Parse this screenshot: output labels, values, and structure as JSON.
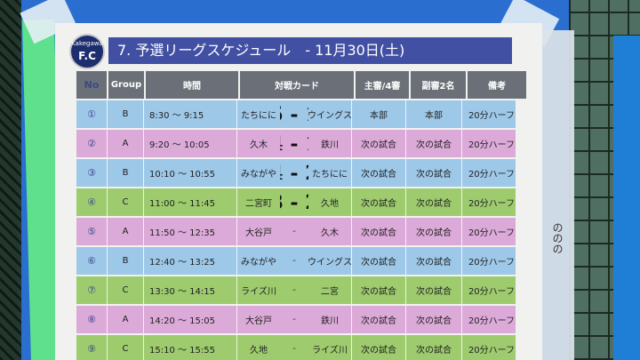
{
  "title": "7. 予選リーグスケジュール　- 11月30日(土)",
  "logo": {
    "top_text": "Kakegawa",
    "mark": "F.C"
  },
  "side_note": "ののの",
  "headers": {
    "no": "No",
    "group": "Group",
    "time": "時間",
    "match": "対戦カード",
    "referee": "主審/4審",
    "assistants": "副審2名",
    "notes": "備考"
  },
  "rows": [
    {
      "no": "①",
      "group": "B",
      "time": "8:30 〜 9:15",
      "home": "たちにに",
      "score": "5 - 1",
      "away": "ウイングス",
      "referee": "本部",
      "assistants": "本部",
      "notes": "20分ハーフ",
      "color": "blue"
    },
    {
      "no": "②",
      "group": "A",
      "time": "9:20 〜 10:05",
      "home": "久木",
      "score": "4 - 1",
      "away": "鉄川",
      "referee": "次の試合",
      "assistants": "次の試合",
      "notes": "20分ハーフ",
      "color": "pink"
    },
    {
      "no": "③",
      "group": "B",
      "time": "10:10 〜 10:55",
      "home": "みながや",
      "score": "4 - 2",
      "away": "たちにに",
      "referee": "次の試合",
      "assistants": "次の試合",
      "notes": "20分ハーフ",
      "color": "blue"
    },
    {
      "no": "④",
      "group": "C",
      "time": "11:00 〜 11:45",
      "home": "二宮町",
      "score": "3 - 2",
      "away": "久地",
      "referee": "次の試合",
      "assistants": "次の試合",
      "notes": "20分ハーフ",
      "color": "green"
    },
    {
      "no": "⑤",
      "group": "A",
      "time": "11:50 〜 12:35",
      "home": "大谷戸",
      "score": "-",
      "away": "久木",
      "referee": "次の試合",
      "assistants": "次の試合",
      "notes": "20分ハーフ",
      "color": "pink"
    },
    {
      "no": "⑥",
      "group": "B",
      "time": "12:40 〜 13:25",
      "home": "みながや",
      "score": "-",
      "away": "ウイングス",
      "referee": "次の試合",
      "assistants": "次の試合",
      "notes": "20分ハーフ",
      "color": "blue"
    },
    {
      "no": "⑦",
      "group": "C",
      "time": "13:30 〜 14:15",
      "home": "ライズ川",
      "score": "-",
      "away": "二宮",
      "referee": "次の試合",
      "assistants": "次の試合",
      "notes": "20分ハーフ",
      "color": "green"
    },
    {
      "no": "⑧",
      "group": "A",
      "time": "14:20 〜 15:05",
      "home": "大谷戸",
      "score": "-",
      "away": "鉄川",
      "referee": "次の試合",
      "assistants": "次の試合",
      "notes": "20分ハーフ",
      "color": "pink"
    },
    {
      "no": "⑨",
      "group": "C",
      "time": "15:10 〜 15:55",
      "home": "久地",
      "score": "-",
      "away": "ライズ川",
      "referee": "次の試合",
      "assistants": "次の試合",
      "notes": "20分ハーフ",
      "color": "green"
    }
  ]
}
